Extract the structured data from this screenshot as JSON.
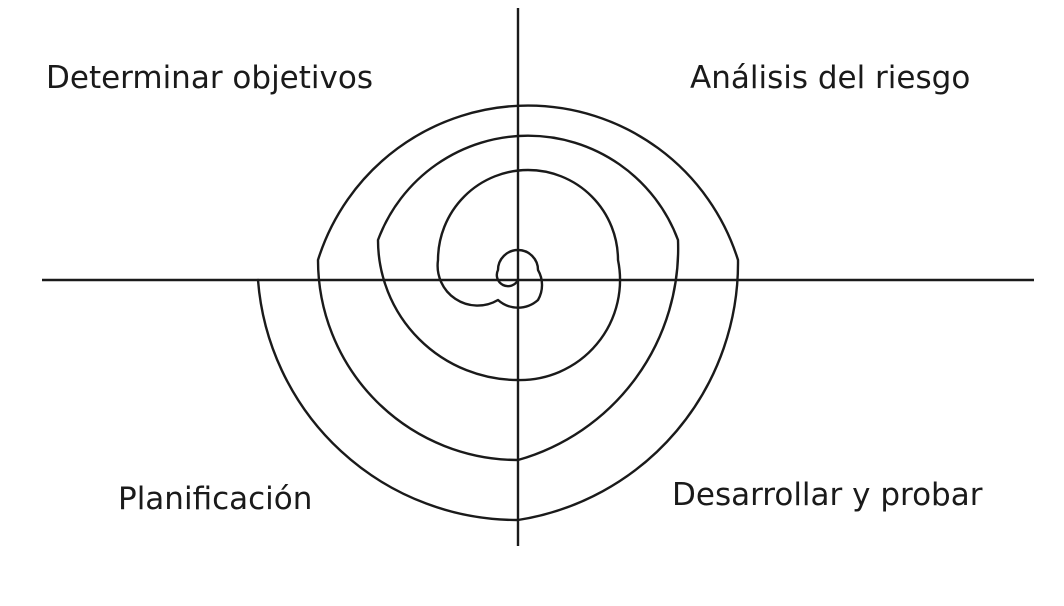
{
  "diagram": {
    "labels": {
      "top_left": "Determinar objetivos",
      "top_right": "Análisis del riesgo",
      "bottom_left": "Planificación",
      "bottom_right": "Desarrollar y probar"
    },
    "colors": {
      "line": "#1a1a1a",
      "text": "#1a1a1a",
      "background": "#ffffff"
    }
  }
}
